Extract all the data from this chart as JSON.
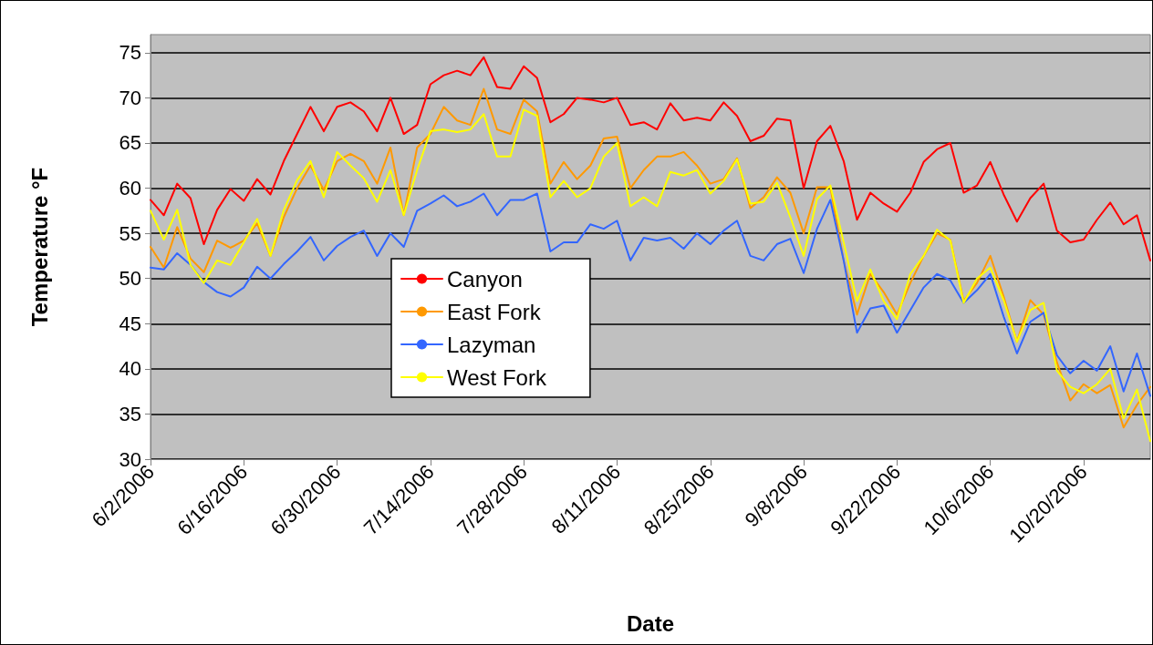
{
  "chart_data": {
    "type": "line",
    "xlabel": "Date",
    "ylabel": "Temperature °F",
    "x": [
      "2006-06-02",
      "2006-06-04",
      "2006-06-06",
      "2006-06-08",
      "2006-06-10",
      "2006-06-12",
      "2006-06-14",
      "2006-06-16",
      "2006-06-18",
      "2006-06-20",
      "2006-06-22",
      "2006-06-24",
      "2006-06-26",
      "2006-06-28",
      "2006-06-30",
      "2006-07-02",
      "2006-07-04",
      "2006-07-06",
      "2006-07-08",
      "2006-07-10",
      "2006-07-12",
      "2006-07-14",
      "2006-07-16",
      "2006-07-18",
      "2006-07-20",
      "2006-07-22",
      "2006-07-24",
      "2006-07-26",
      "2006-07-28",
      "2006-07-30",
      "2006-08-01",
      "2006-08-03",
      "2006-08-05",
      "2006-08-07",
      "2006-08-09",
      "2006-08-11",
      "2006-08-13",
      "2006-08-15",
      "2006-08-17",
      "2006-08-19",
      "2006-08-21",
      "2006-08-23",
      "2006-08-25",
      "2006-08-27",
      "2006-08-29",
      "2006-08-31",
      "2006-09-02",
      "2006-09-04",
      "2006-09-06",
      "2006-09-08",
      "2006-09-10",
      "2006-09-12",
      "2006-09-14",
      "2006-09-16",
      "2006-09-18",
      "2006-09-20",
      "2006-09-22",
      "2006-09-24",
      "2006-09-26",
      "2006-09-28",
      "2006-09-30",
      "2006-10-02",
      "2006-10-04",
      "2006-10-06",
      "2006-10-08",
      "2006-10-10",
      "2006-10-12",
      "2006-10-14",
      "2006-10-16",
      "2006-10-18",
      "2006-10-20",
      "2006-10-22",
      "2006-10-24",
      "2006-10-26",
      "2006-10-28",
      "2006-10-30"
    ],
    "series": [
      {
        "name": "Canyon",
        "color": "#ff0000",
        "values": [
          58.7,
          57,
          60.5,
          58.9,
          53.8,
          57.6,
          59.9,
          58.6,
          61,
          59.3,
          63,
          66,
          69,
          66.3,
          69,
          69.5,
          68.5,
          66.3,
          70,
          66,
          67,
          71.5,
          72.5,
          73,
          72.5,
          74.5,
          71.2,
          71,
          73.5,
          72.2,
          67.3,
          68.2,
          70,
          69.8,
          69.5,
          70,
          67,
          67.3,
          66.5,
          69.4,
          67.5,
          67.8,
          67.5,
          69.5,
          68,
          65.2,
          65.8,
          67.7,
          67.5,
          60,
          65.2,
          66.9,
          63,
          56.5,
          59.5,
          58.3,
          57.4,
          59.5,
          62.9,
          64.3,
          65,
          59.5,
          60.3,
          62.9,
          59.3,
          56.3,
          58.9,
          60.5,
          55.3,
          54,
          54.3,
          56.5,
          58.4,
          56,
          57,
          52
        ]
      },
      {
        "name": "East Fork",
        "color": "#ff9900",
        "values": [
          53.5,
          51.2,
          55.7,
          52.2,
          50.7,
          54.2,
          53.4,
          54.2,
          56.1,
          52.5,
          56.8,
          60,
          62.5,
          59.8,
          63,
          63.8,
          63,
          60.5,
          64.5,
          57,
          64.5,
          66,
          69,
          67.5,
          67,
          71,
          66.5,
          66,
          69.8,
          68.5,
          60.5,
          62.9,
          61,
          62.5,
          65.5,
          65.7,
          60,
          62,
          63.5,
          63.5,
          64,
          62.5,
          60.5,
          61,
          63.3,
          57.8,
          59,
          61.2,
          59.5,
          55,
          60.1,
          60.1,
          52,
          46,
          50.5,
          48.5,
          46,
          49.5,
          52.5,
          55,
          54.3,
          47.5,
          49.5,
          52.5,
          48,
          43,
          47.6,
          46,
          40.7,
          36.5,
          38.3,
          37.3,
          38.2,
          33.5,
          36,
          38
        ]
      },
      {
        "name": "Lazyman",
        "color": "#3366ff",
        "values": [
          51.2,
          51,
          52.8,
          51.5,
          49.6,
          48.5,
          48,
          49,
          51.3,
          50,
          51.6,
          53,
          54.6,
          52,
          53.6,
          54.6,
          55.3,
          52.5,
          55,
          53.5,
          57.5,
          58.3,
          59.2,
          58,
          58.5,
          59.4,
          57,
          58.7,
          58.7,
          59.4,
          53,
          54,
          54,
          56,
          55.5,
          56.4,
          52,
          54.5,
          54.2,
          54.5,
          53.3,
          55,
          53.8,
          55.3,
          56.4,
          52.5,
          52,
          53.8,
          54.4,
          50.6,
          55.5,
          58.7,
          52,
          44,
          46.7,
          47,
          44,
          46.5,
          49,
          50.5,
          49.8,
          47.3,
          48.7,
          50.5,
          45.8,
          41.7,
          45.2,
          46.2,
          41.5,
          39.5,
          40.9,
          39.8,
          42.5,
          37.5,
          41.7,
          37
        ]
      },
      {
        "name": "West Fork",
        "color": "#ffff00",
        "values": [
          57.5,
          54.3,
          57.6,
          51.5,
          49.5,
          52,
          51.5,
          54,
          56.6,
          52.5,
          57.6,
          60.9,
          63,
          59,
          64,
          62.5,
          61.1,
          58.5,
          62,
          57,
          62,
          66.3,
          66.5,
          66.2,
          66.5,
          68.2,
          63.5,
          63.5,
          68.7,
          68,
          59,
          60.8,
          59,
          60,
          63.5,
          65,
          58,
          59,
          58,
          61.8,
          61.4,
          62,
          59.4,
          60.8,
          63.2,
          58.3,
          58.5,
          60.6,
          56.8,
          52.5,
          58.8,
          60.3,
          54,
          47.5,
          51,
          47.5,
          45.5,
          50.5,
          52.5,
          55.4,
          54.2,
          47.3,
          50,
          51.2,
          47.6,
          43,
          46.5,
          47.3,
          39.8,
          38,
          37.3,
          38.3,
          40,
          34.5,
          37.7,
          32
        ]
      }
    ],
    "xlim": [
      "2006-06-02",
      "2006-10-30"
    ],
    "xticks": [
      {
        "value": "2006-06-02",
        "label": "6/2/2006"
      },
      {
        "value": "2006-06-16",
        "label": "6/16/2006"
      },
      {
        "value": "2006-06-30",
        "label": "6/30/2006"
      },
      {
        "value": "2006-07-14",
        "label": "7/14/2006"
      },
      {
        "value": "2006-07-28",
        "label": "7/28/2006"
      },
      {
        "value": "2006-08-11",
        "label": "8/11/2006"
      },
      {
        "value": "2006-08-25",
        "label": "8/25/2006"
      },
      {
        "value": "2006-09-08",
        "label": "9/8/2006"
      },
      {
        "value": "2006-09-22",
        "label": "9/22/2006"
      },
      {
        "value": "2006-10-06",
        "label": "10/6/2006"
      },
      {
        "value": "2006-10-20",
        "label": "10/20/2006"
      }
    ],
    "ylim": [
      30,
      77
    ],
    "yticks": [
      30,
      35,
      40,
      45,
      50,
      55,
      60,
      65,
      70,
      75
    ],
    "grid": "y",
    "legend": "bottom left",
    "marker": "none",
    "line_style": "solid"
  }
}
